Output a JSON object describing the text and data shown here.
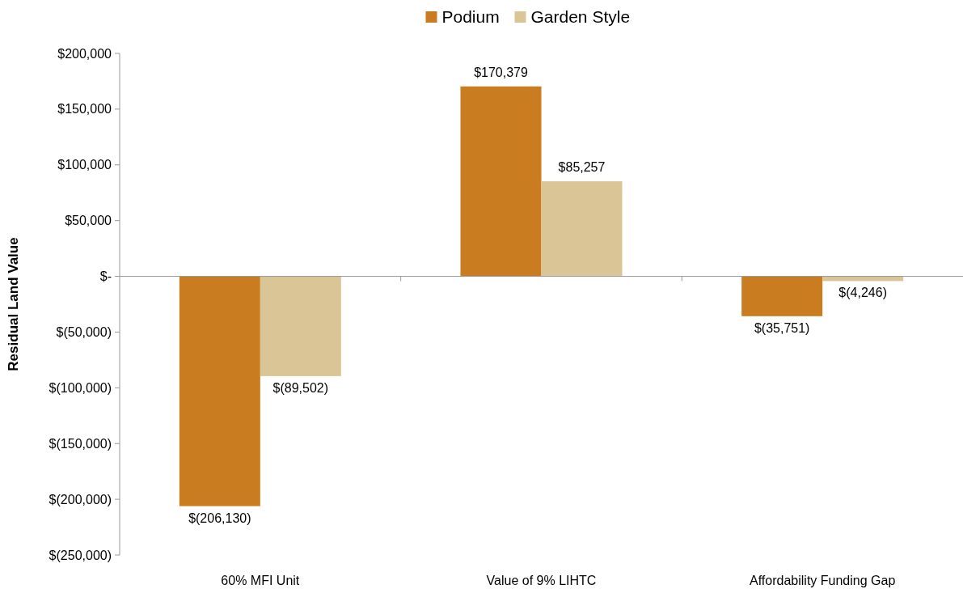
{
  "chart_data": {
    "type": "bar",
    "ylabel": "Residual Land Value",
    "categories": [
      "60% MFI Unit",
      "Value of 9% LIHTC",
      "Affordability Funding Gap"
    ],
    "series": [
      {
        "name": "Podium",
        "color": "#c97d20",
        "values": [
          -206130,
          170379,
          -35751
        ],
        "value_labels": [
          "$(206,130)",
          "$170,379",
          "$(35,751)"
        ]
      },
      {
        "name": "Garden Style",
        "color": "#d9c595",
        "values": [
          -89502,
          85257,
          -4246
        ],
        "value_labels": [
          "$(89,502)",
          "$85,257",
          "$(4,246)"
        ]
      }
    ],
    "ylim": [
      -250000,
      200000
    ],
    "yticks": [
      {
        "value": -250000,
        "label": "$(250,000)"
      },
      {
        "value": -200000,
        "label": "$(200,000)"
      },
      {
        "value": -150000,
        "label": "$(150,000)"
      },
      {
        "value": -100000,
        "label": "$(100,000)"
      },
      {
        "value": -50000,
        "label": "$(50,000)"
      },
      {
        "value": 0,
        "label": "$-"
      },
      {
        "value": 50000,
        "label": "$50,000"
      },
      {
        "value": 100000,
        "label": "$100,000"
      },
      {
        "value": 150000,
        "label": "$150,000"
      },
      {
        "value": 200000,
        "label": "$200,000"
      }
    ],
    "legend": "top"
  }
}
